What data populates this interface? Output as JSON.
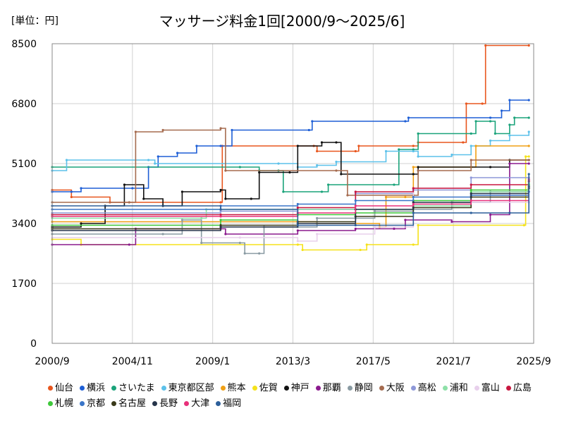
{
  "chart_data": {
    "type": "line",
    "title": "マッサージ料金1回[2000/9～2025/6]",
    "unit_label": "[単位：円]",
    "xlabel": "",
    "ylabel": "",
    "ylim": [
      0,
      8500
    ],
    "y_ticks": [
      "0",
      "1700",
      "3400",
      "5100",
      "6800",
      "8500"
    ],
    "xlim": [
      "2000-09",
      "2025-09"
    ],
    "x_ticks": [
      "2000/9",
      "2004/11",
      "2009/1",
      "2013/3",
      "2017/5",
      "2021/7",
      "2025/9"
    ],
    "grid": true,
    "legend_position": "bottom",
    "series": [
      {
        "name": "仙台",
        "color": "#e8561e",
        "points": [
          [
            "2000-09",
            4350
          ],
          [
            "2001-09",
            4150
          ],
          [
            "2003-09",
            4000
          ],
          [
            "2009-06",
            4000
          ],
          [
            "2009-07",
            5600
          ],
          [
            "2014-04",
            5600
          ],
          [
            "2014-06",
            5450
          ],
          [
            "2016-06",
            5450
          ],
          [
            "2016-08",
            5600
          ],
          [
            "2019-06",
            5600
          ],
          [
            "2019-09",
            5700
          ],
          [
            "2022-01",
            5700
          ],
          [
            "2022-03",
            6800
          ],
          [
            "2023-01",
            6800
          ],
          [
            "2023-03",
            8450
          ],
          [
            "2025-06",
            8450
          ]
        ]
      },
      {
        "name": "横浜",
        "color": "#1e5fd6",
        "points": [
          [
            "2000-09",
            4300
          ],
          [
            "2001-09",
            4300
          ],
          [
            "2002-03",
            4400
          ],
          [
            "2004-11",
            4400
          ],
          [
            "2005-09",
            5000
          ],
          [
            "2006-03",
            5300
          ],
          [
            "2007-03",
            5400
          ],
          [
            "2008-03",
            5600
          ],
          [
            "2009-06",
            5600
          ],
          [
            "2010-01",
            6050
          ],
          [
            "2014-01",
            6050
          ],
          [
            "2014-03",
            6300
          ],
          [
            "2019-01",
            6300
          ],
          [
            "2019-03",
            6400
          ],
          [
            "2023-06",
            6400
          ],
          [
            "2024-01",
            6600
          ],
          [
            "2024-06",
            6900
          ],
          [
            "2025-06",
            6900
          ]
        ]
      },
      {
        "name": "さいたま",
        "color": "#1aa37a",
        "points": [
          [
            "2000-09",
            5000
          ],
          [
            "2010-06",
            5000
          ],
          [
            "2011-06",
            4900
          ],
          [
            "2012-06",
            4900
          ],
          [
            "2012-09",
            4300
          ],
          [
            "2014-09",
            4300
          ],
          [
            "2015-01",
            4500
          ],
          [
            "2018-06",
            4500
          ],
          [
            "2018-09",
            5500
          ],
          [
            "2019-06",
            5500
          ],
          [
            "2019-09",
            5950
          ],
          [
            "2022-06",
            5950
          ],
          [
            "2022-09",
            6300
          ],
          [
            "2023-06",
            6300
          ],
          [
            "2023-09",
            5950
          ],
          [
            "2024-06",
            6200
          ],
          [
            "2024-09",
            6400
          ],
          [
            "2025-06",
            6400
          ]
        ]
      },
      {
        "name": "東京都区部",
        "color": "#5cc1ea",
        "points": [
          [
            "2000-09",
            4900
          ],
          [
            "2001-06",
            5200
          ],
          [
            "2005-09",
            5200
          ],
          [
            "2006-01",
            5100
          ],
          [
            "2012-06",
            5100
          ],
          [
            "2013-06",
            5000
          ],
          [
            "2014-06",
            5050
          ],
          [
            "2015-06",
            5150
          ],
          [
            "2018-01",
            5450
          ],
          [
            "2019-06",
            5450
          ],
          [
            "2019-09",
            5300
          ],
          [
            "2021-06",
            5350
          ],
          [
            "2022-06",
            5600
          ],
          [
            "2023-06",
            5750
          ],
          [
            "2024-06",
            5900
          ],
          [
            "2025-06",
            6000
          ]
        ]
      },
      {
        "name": "熊本",
        "color": "#f0a015",
        "points": [
          [
            "2000-09",
            3450
          ],
          [
            "2013-06",
            3450
          ],
          [
            "2014-06",
            3400
          ],
          [
            "2017-09",
            3300
          ],
          [
            "2018-01",
            4150
          ],
          [
            "2019-01",
            4150
          ],
          [
            "2019-06",
            5000
          ],
          [
            "2022-06",
            5000
          ],
          [
            "2022-09",
            5600
          ],
          [
            "2025-06",
            5600
          ]
        ]
      },
      {
        "name": "佐賀",
        "color": "#f5e21b",
        "points": [
          [
            "2000-09",
            2950
          ],
          [
            "2002-03",
            2800
          ],
          [
            "2013-06",
            2800
          ],
          [
            "2013-09",
            2650
          ],
          [
            "2016-09",
            2650
          ],
          [
            "2017-01",
            2800
          ],
          [
            "2019-06",
            2800
          ],
          [
            "2019-09",
            3350
          ],
          [
            "2025-03",
            3350
          ],
          [
            "2025-04",
            5300
          ],
          [
            "2025-06",
            5300
          ]
        ]
      },
      {
        "name": "神戸",
        "color": "#111111",
        "points": [
          [
            "2000-09",
            3300
          ],
          [
            "2002-03",
            3400
          ],
          [
            "2003-06",
            3900
          ],
          [
            "2004-06",
            4500
          ],
          [
            "2005-06",
            4100
          ],
          [
            "2006-06",
            3900
          ],
          [
            "2007-06",
            4300
          ],
          [
            "2009-06",
            4350
          ],
          [
            "2009-09",
            4100
          ],
          [
            "2011-01",
            4100
          ],
          [
            "2011-06",
            4850
          ],
          [
            "2013-01",
            4850
          ],
          [
            "2013-06",
            5600
          ],
          [
            "2014-09",
            5700
          ],
          [
            "2015-06",
            5700
          ],
          [
            "2015-09",
            4800
          ],
          [
            "2019-06",
            4800
          ],
          [
            "2019-09",
            5000
          ],
          [
            "2023-06",
            5000
          ],
          [
            "2024-06",
            5200
          ],
          [
            "2025-06",
            5200
          ]
        ]
      },
      {
        "name": "那覇",
        "color": "#8b1a8e",
        "points": [
          [
            "2000-09",
            2800
          ],
          [
            "2004-09",
            2800
          ],
          [
            "2005-01",
            3250
          ],
          [
            "2009-06",
            3250
          ],
          [
            "2009-09",
            3100
          ],
          [
            "2013-06",
            3200
          ],
          [
            "2016-06",
            3250
          ],
          [
            "2018-06",
            3250
          ],
          [
            "2019-01",
            3500
          ],
          [
            "2021-06",
            3450
          ],
          [
            "2023-06",
            3650
          ],
          [
            "2024-06",
            5100
          ],
          [
            "2025-06",
            5100
          ]
        ]
      },
      {
        "name": "静岡",
        "color": "#8a9ba3",
        "points": [
          [
            "2000-09",
            3100
          ],
          [
            "2006-06",
            3100
          ],
          [
            "2007-06",
            3500
          ],
          [
            "2008-06",
            2850
          ],
          [
            "2010-06",
            2850
          ],
          [
            "2010-09",
            2550
          ],
          [
            "2011-06",
            2550
          ],
          [
            "2011-09",
            3300
          ],
          [
            "2013-06",
            3300
          ],
          [
            "2014-06",
            3550
          ],
          [
            "2016-06",
            3550
          ],
          [
            "2017-06",
            3750
          ],
          [
            "2019-06",
            3800
          ],
          [
            "2021-06",
            4000
          ],
          [
            "2023-06",
            4300
          ],
          [
            "2025-06",
            4550
          ]
        ]
      },
      {
        "name": "大阪",
        "color": "#a56b4f",
        "points": [
          [
            "2000-09",
            4000
          ],
          [
            "2004-09",
            4000
          ],
          [
            "2005-01",
            6000
          ],
          [
            "2006-06",
            6050
          ],
          [
            "2009-06",
            6100
          ],
          [
            "2009-09",
            4900
          ],
          [
            "2015-06",
            4900
          ],
          [
            "2016-01",
            4200
          ],
          [
            "2019-06",
            4200
          ],
          [
            "2019-09",
            4900
          ],
          [
            "2022-06",
            5200
          ],
          [
            "2025-06",
            5200
          ]
        ]
      },
      {
        "name": "高松",
        "color": "#8e98d8",
        "points": [
          [
            "2000-09",
            3700
          ],
          [
            "2009-06",
            3750
          ],
          [
            "2013-06",
            3800
          ],
          [
            "2016-06",
            4250
          ],
          [
            "2019-06",
            4350
          ],
          [
            "2022-06",
            4700
          ],
          [
            "2025-06",
            4700
          ]
        ]
      },
      {
        "name": "浦和",
        "color": "#8ee0a8",
        "points": [
          [
            "2000-09",
            3550
          ],
          [
            "2008-06",
            3550
          ],
          [
            "2008-09",
            3800
          ],
          [
            "2019-06",
            3900
          ],
          [
            "2022-06",
            4300
          ],
          [
            "2025-06",
            4550
          ]
        ]
      },
      {
        "name": "富山",
        "color": "#e8d0ec",
        "points": [
          [
            "2000-09",
            3000
          ],
          [
            "2010-06",
            3000
          ],
          [
            "2013-06",
            2900
          ],
          [
            "2014-06",
            3100
          ],
          [
            "2017-06",
            3300
          ],
          [
            "2019-06",
            4400
          ],
          [
            "2022-06",
            4000
          ],
          [
            "2025-06",
            4000
          ]
        ]
      },
      {
        "name": "広島",
        "color": "#c8173f",
        "points": [
          [
            "2000-09",
            3650
          ],
          [
            "2009-06",
            3650
          ],
          [
            "2013-06",
            3850
          ],
          [
            "2016-06",
            4300
          ],
          [
            "2019-06",
            4400
          ],
          [
            "2022-06",
            4500
          ],
          [
            "2025-06",
            4600
          ]
        ]
      },
      {
        "name": "札幌",
        "color": "#3ec83a",
        "points": [
          [
            "2000-09",
            3350
          ],
          [
            "2009-06",
            3500
          ],
          [
            "2013-06",
            3650
          ],
          [
            "2016-06",
            3700
          ],
          [
            "2019-06",
            4050
          ],
          [
            "2022-06",
            4350
          ],
          [
            "2025-06",
            4500
          ]
        ]
      },
      {
        "name": "京都",
        "color": "#3a75c8",
        "points": [
          [
            "2000-09",
            3800
          ],
          [
            "2009-06",
            3900
          ],
          [
            "2013-06",
            3950
          ],
          [
            "2016-06",
            4050
          ],
          [
            "2019-06",
            4150
          ],
          [
            "2022-06",
            4200
          ],
          [
            "2025-06",
            4300
          ]
        ]
      },
      {
        "name": "名古屋",
        "color": "#3a3a1a",
        "points": [
          [
            "2000-09",
            3250
          ],
          [
            "2009-06",
            3350
          ],
          [
            "2013-06",
            3450
          ],
          [
            "2016-06",
            3600
          ],
          [
            "2019-06",
            3850
          ],
          [
            "2022-06",
            4150
          ],
          [
            "2025-06",
            4400
          ]
        ]
      },
      {
        "name": "長野",
        "color": "#26344a",
        "points": [
          [
            "2000-09",
            3200
          ],
          [
            "2009-06",
            3300
          ],
          [
            "2013-06",
            3400
          ],
          [
            "2016-06",
            3800
          ],
          [
            "2019-06",
            4000
          ],
          [
            "2022-06",
            4250
          ],
          [
            "2025-06",
            4450
          ]
        ]
      },
      {
        "name": "大津",
        "color": "#e8307a",
        "points": [
          [
            "2000-09",
            3600
          ],
          [
            "2009-06",
            3600
          ],
          [
            "2013-06",
            3700
          ],
          [
            "2016-06",
            3900
          ],
          [
            "2019-06",
            3950
          ],
          [
            "2022-06",
            4050
          ],
          [
            "2025-06",
            4650
          ]
        ]
      },
      {
        "name": "福岡",
        "color": "#2d5f9a",
        "points": [
          [
            "2000-09",
            3900
          ],
          [
            "2009-06",
            3800
          ],
          [
            "2013-06",
            3350
          ],
          [
            "2016-06",
            3350
          ],
          [
            "2019-06",
            3700
          ],
          [
            "2022-06",
            3700
          ],
          [
            "2024-06",
            3700
          ],
          [
            "2025-06",
            4800
          ]
        ]
      }
    ]
  }
}
